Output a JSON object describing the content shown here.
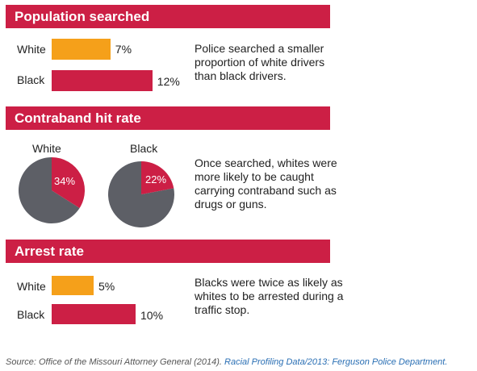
{
  "colors": {
    "header_bg": "#cc1f45",
    "white_bar": "#f5a01a",
    "black_bar": "#cc1f45",
    "pie_highlight": "#cc1f45",
    "pie_rest": "#5d5f66"
  },
  "sections": {
    "searched": {
      "title": "Population searched",
      "note": "Police searched a smaller proportion of white drivers than black drivers."
    },
    "contraband": {
      "title": "Contraband hit rate",
      "note": "Once searched, whites were more likely to be caught carrying contraband such as drugs or guns."
    },
    "arrest": {
      "title": "Arrest rate",
      "note": "Blacks were twice as likely as whites to be arrested during a traffic stop."
    }
  },
  "chart_data": [
    {
      "type": "bar",
      "title": "Population searched",
      "categories": [
        "White",
        "Black"
      ],
      "values": [
        7,
        12
      ],
      "value_labels": [
        "7%",
        "12%"
      ],
      "unit": "%"
    },
    {
      "type": "pie",
      "title": "Contraband hit rate",
      "pies": [
        {
          "label": "White",
          "value": 34,
          "value_label": "34%"
        },
        {
          "label": "Black",
          "value": 22,
          "value_label": "22%"
        }
      ],
      "unit": "%"
    },
    {
      "type": "bar",
      "title": "Arrest rate",
      "categories": [
        "White",
        "Black"
      ],
      "values": [
        5,
        10
      ],
      "value_labels": [
        "5%",
        "10%"
      ],
      "unit": "%"
    }
  ],
  "source": {
    "prefix": "Source: Office of the Missouri Attorney General (2014). ",
    "link_text": "Racial Profiling Data/2013: Ferguson Police Department."
  }
}
